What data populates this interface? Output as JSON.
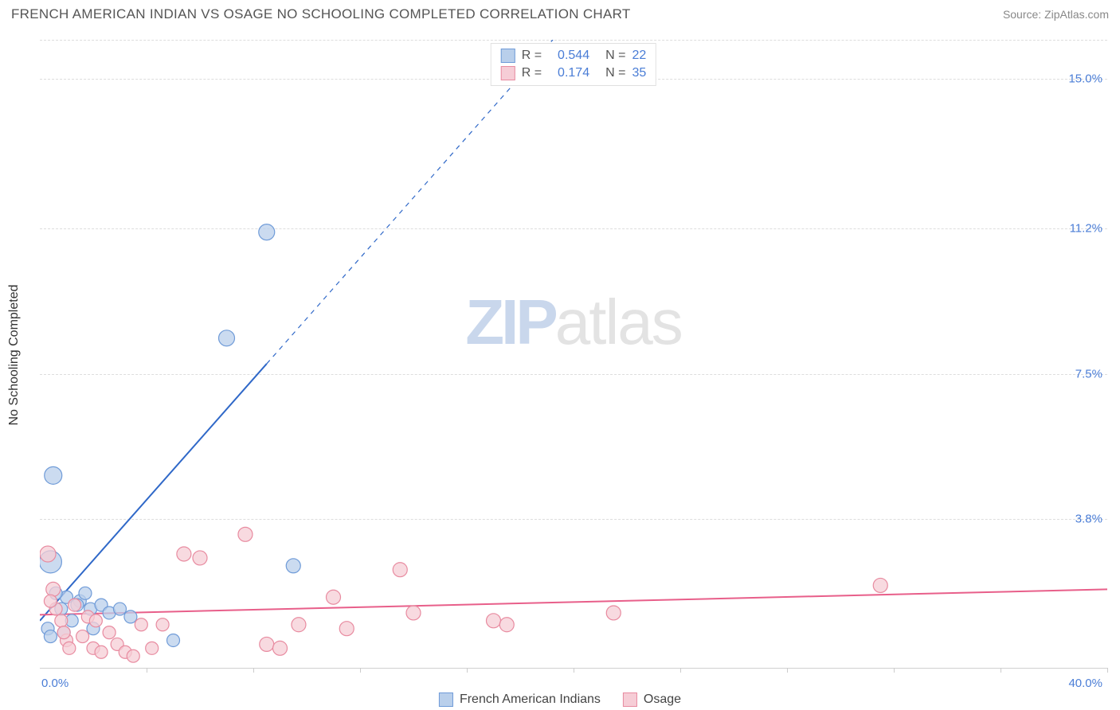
{
  "title": "FRENCH AMERICAN INDIAN VS OSAGE NO SCHOOLING COMPLETED CORRELATION CHART",
  "source": "Source: ZipAtlas.com",
  "watermark": {
    "zip": "ZIP",
    "atlas": "atlas"
  },
  "chart": {
    "type": "scatter",
    "background_color": "#ffffff",
    "grid_color": "#dddddd",
    "axis_color": "#d0d0d0",
    "ylabel": "No Schooling Completed",
    "label_fontsize": 16,
    "tick_fontsize": 15,
    "tick_color": "#4a7dd6",
    "xlim": [
      0,
      40
    ],
    "ylim": [
      0,
      16
    ],
    "xtick_positions": [
      4,
      8,
      12,
      16,
      20,
      24,
      28,
      32,
      36,
      40
    ],
    "xlabel_min": "0.0%",
    "xlabel_max": "40.0%",
    "ytick_positions": [
      3.8,
      7.5,
      11.2,
      15.0
    ],
    "ytick_labels": [
      "3.8%",
      "7.5%",
      "11.2%",
      "15.0%"
    ],
    "series": [
      {
        "name": "French American Indians",
        "color_fill": "#b9cfeb",
        "color_stroke": "#6f9bd8",
        "line_color": "#2f68c8",
        "line_width": 2,
        "R": "0.544",
        "N": "22",
        "regression": {
          "x1": 0,
          "y1": 1.2,
          "x2": 40,
          "y2": 32.0,
          "solid_until_x": 8.5
        },
        "points": [
          {
            "x": 0.5,
            "y": 4.9,
            "r": 11
          },
          {
            "x": 8.5,
            "y": 11.1,
            "r": 10
          },
          {
            "x": 7.0,
            "y": 8.4,
            "r": 10
          },
          {
            "x": 0.4,
            "y": 2.7,
            "r": 14
          },
          {
            "x": 1.0,
            "y": 1.8,
            "r": 8
          },
          {
            "x": 1.5,
            "y": 1.7,
            "r": 8
          },
          {
            "x": 1.9,
            "y": 1.5,
            "r": 8
          },
          {
            "x": 2.3,
            "y": 1.6,
            "r": 8
          },
          {
            "x": 2.6,
            "y": 1.4,
            "r": 8
          },
          {
            "x": 3.0,
            "y": 1.5,
            "r": 8
          },
          {
            "x": 3.4,
            "y": 1.3,
            "r": 8
          },
          {
            "x": 9.5,
            "y": 2.6,
            "r": 9
          },
          {
            "x": 5.0,
            "y": 0.7,
            "r": 8
          },
          {
            "x": 0.8,
            "y": 1.5,
            "r": 8
          },
          {
            "x": 1.2,
            "y": 1.2,
            "r": 8
          },
          {
            "x": 0.6,
            "y": 1.9,
            "r": 8
          },
          {
            "x": 2.0,
            "y": 1.0,
            "r": 8
          },
          {
            "x": 0.3,
            "y": 1.0,
            "r": 8
          },
          {
            "x": 0.4,
            "y": 0.8,
            "r": 8
          },
          {
            "x": 1.7,
            "y": 1.9,
            "r": 8
          },
          {
            "x": 0.9,
            "y": 0.9,
            "r": 8
          },
          {
            "x": 1.4,
            "y": 1.6,
            "r": 8
          }
        ]
      },
      {
        "name": "Osage",
        "color_fill": "#f6cdd6",
        "color_stroke": "#e88ba0",
        "line_color": "#e85f8a",
        "line_width": 2,
        "R": "0.174",
        "N": "35",
        "regression": {
          "x1": 0,
          "y1": 1.35,
          "x2": 40,
          "y2": 2.0,
          "solid_until_x": 40
        },
        "points": [
          {
            "x": 0.3,
            "y": 2.9,
            "r": 10
          },
          {
            "x": 0.5,
            "y": 2.0,
            "r": 9
          },
          {
            "x": 0.8,
            "y": 1.2,
            "r": 8
          },
          {
            "x": 1.0,
            "y": 0.7,
            "r": 8
          },
          {
            "x": 1.3,
            "y": 1.6,
            "r": 8
          },
          {
            "x": 1.6,
            "y": 0.8,
            "r": 8
          },
          {
            "x": 2.0,
            "y": 0.5,
            "r": 8
          },
          {
            "x": 2.3,
            "y": 0.4,
            "r": 8
          },
          {
            "x": 2.6,
            "y": 0.9,
            "r": 8
          },
          {
            "x": 2.9,
            "y": 0.6,
            "r": 8
          },
          {
            "x": 3.2,
            "y": 0.4,
            "r": 8
          },
          {
            "x": 3.5,
            "y": 0.3,
            "r": 8
          },
          {
            "x": 3.8,
            "y": 1.1,
            "r": 8
          },
          {
            "x": 4.2,
            "y": 0.5,
            "r": 8
          },
          {
            "x": 4.6,
            "y": 1.1,
            "r": 8
          },
          {
            "x": 5.4,
            "y": 2.9,
            "r": 9
          },
          {
            "x": 6.0,
            "y": 2.8,
            "r": 9
          },
          {
            "x": 7.7,
            "y": 3.4,
            "r": 9
          },
          {
            "x": 8.5,
            "y": 0.6,
            "r": 9
          },
          {
            "x": 9.0,
            "y": 0.5,
            "r": 9
          },
          {
            "x": 9.7,
            "y": 1.1,
            "r": 9
          },
          {
            "x": 11.0,
            "y": 1.8,
            "r": 9
          },
          {
            "x": 11.5,
            "y": 1.0,
            "r": 9
          },
          {
            "x": 13.5,
            "y": 2.5,
            "r": 9
          },
          {
            "x": 14.0,
            "y": 1.4,
            "r": 9
          },
          {
            "x": 17.0,
            "y": 1.2,
            "r": 9
          },
          {
            "x": 17.5,
            "y": 1.1,
            "r": 9
          },
          {
            "x": 21.5,
            "y": 1.4,
            "r": 9
          },
          {
            "x": 31.5,
            "y": 2.1,
            "r": 9
          },
          {
            "x": 0.6,
            "y": 1.5,
            "r": 8
          },
          {
            "x": 1.8,
            "y": 1.3,
            "r": 8
          },
          {
            "x": 2.1,
            "y": 1.2,
            "r": 8
          },
          {
            "x": 0.9,
            "y": 0.9,
            "r": 8
          },
          {
            "x": 1.1,
            "y": 0.5,
            "r": 8
          },
          {
            "x": 0.4,
            "y": 1.7,
            "r": 8
          }
        ]
      }
    ]
  }
}
